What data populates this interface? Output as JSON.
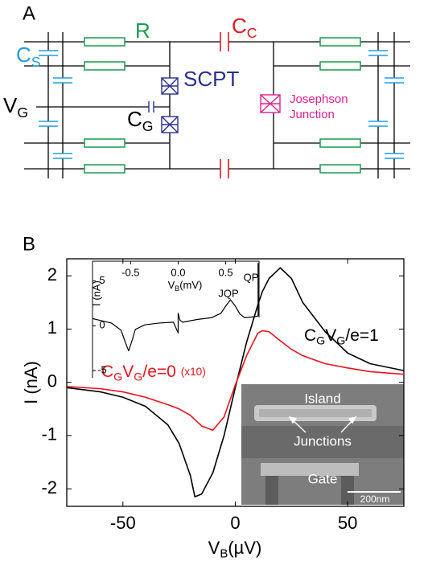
{
  "diagram": {
    "panel_label": "A",
    "resistor_label": "R",
    "coupling_cap": [
      {
        "text": "C"
      },
      {
        "text": "C",
        "sub": true
      }
    ],
    "shunt_cap": [
      {
        "text": "C"
      },
      {
        "text": "S",
        "sub": true
      }
    ],
    "gate_voltage": [
      {
        "text": "V"
      },
      {
        "text": "G",
        "sub": true
      }
    ],
    "gate_cap": [
      {
        "text": "C"
      },
      {
        "text": "G",
        "sub": true
      }
    ],
    "device": "SCPT",
    "junction": [
      "Josephson",
      "Junction"
    ]
  },
  "chart_data": [
    {
      "type": "line",
      "panel_label": "B",
      "x_label": [
        {
          "text": "V"
        },
        {
          "text": "B",
          "sub": true
        },
        {
          "text": "(µV)"
        }
      ],
      "y_label": "I (nA)",
      "x": [
        -75,
        -60,
        -50,
        -40,
        -30,
        -25,
        -20,
        -18,
        -15,
        -10,
        -5,
        0,
        5,
        10,
        12,
        15,
        20,
        25,
        30,
        40,
        50,
        60,
        75
      ],
      "series": [
        {
          "name": [
            {
              "text": "C"
            },
            {
              "text": "G",
              "sub": true
            },
            {
              "text": "V"
            },
            {
              "text": "G",
              "sub": true
            },
            {
              "text": "/e=1"
            }
          ],
          "color": "#000000",
          "values": [
            -0.1,
            -0.18,
            -0.28,
            -0.45,
            -0.8,
            -1.15,
            -1.75,
            -2.15,
            -2.1,
            -1.7,
            -1.0,
            -0.1,
            0.75,
            1.45,
            1.7,
            1.95,
            2.15,
            1.95,
            1.5,
            0.95,
            0.55,
            0.35,
            0.22
          ]
        },
        {
          "name": [
            {
              "text": "C"
            },
            {
              "text": "G",
              "sub": true
            },
            {
              "text": "V"
            },
            {
              "text": "G",
              "sub": true
            },
            {
              "text": "/e=0 "
            },
            {
              "text": "(x10)",
              "small": true
            }
          ],
          "color": "#e8141e",
          "values": [
            -0.08,
            -0.12,
            -0.18,
            -0.28,
            -0.42,
            -0.5,
            -0.62,
            -0.7,
            -0.82,
            -0.9,
            -0.65,
            -0.05,
            0.5,
            0.92,
            0.97,
            0.95,
            0.78,
            0.62,
            0.5,
            0.35,
            0.27,
            0.2,
            0.15
          ]
        }
      ],
      "xlim": [
        -75,
        75
      ],
      "ylim": [
        -2.33,
        2.32
      ],
      "xticks": [
        -50,
        0,
        50
      ],
      "yticks": [
        -2,
        -1,
        0,
        1,
        2
      ]
    },
    {
      "type": "line",
      "x_label": [
        {
          "text": "V"
        },
        {
          "text": "B",
          "sub": true
        },
        {
          "text": "(mV)"
        }
      ],
      "y_label": "I (nA)",
      "x": [
        -0.9,
        -0.7,
        -0.6,
        -0.55,
        -0.52,
        -0.48,
        -0.45,
        -0.35,
        -0.2,
        -0.05,
        0,
        0,
        0.02,
        0.05,
        0.2,
        0.35,
        0.45,
        0.5,
        0.55,
        0.6,
        0.65,
        0.7,
        0.8,
        0.84,
        0.84
      ],
      "series": [
        {
          "color": "#000000",
          "values": [
            0.8,
            0.3,
            -0.5,
            -2,
            -2.8,
            -1.5,
            -0.4,
            0.1,
            0.3,
            0.4,
            -0.8,
            1.4,
            0.6,
            0.4,
            0.7,
            0.9,
            1.4,
            2.2,
            2.9,
            2.2,
            1.3,
            0.9,
            1.0,
            1.1,
            7
          ]
        }
      ],
      "annotations": [
        "JQP",
        "QP"
      ],
      "xlim": [
        -0.9,
        0.85
      ],
      "ylim": [
        -5.8,
        7.2
      ],
      "xticks": [
        -0.5,
        {
          "value": 0,
          "label": "0.0"
        },
        0.5
      ],
      "yticks": [
        5,
        0,
        -5
      ]
    }
  ],
  "image_inset": {
    "labels": [
      "Island",
      "Junctions",
      "Gate"
    ],
    "scale_bar": "200nm"
  }
}
